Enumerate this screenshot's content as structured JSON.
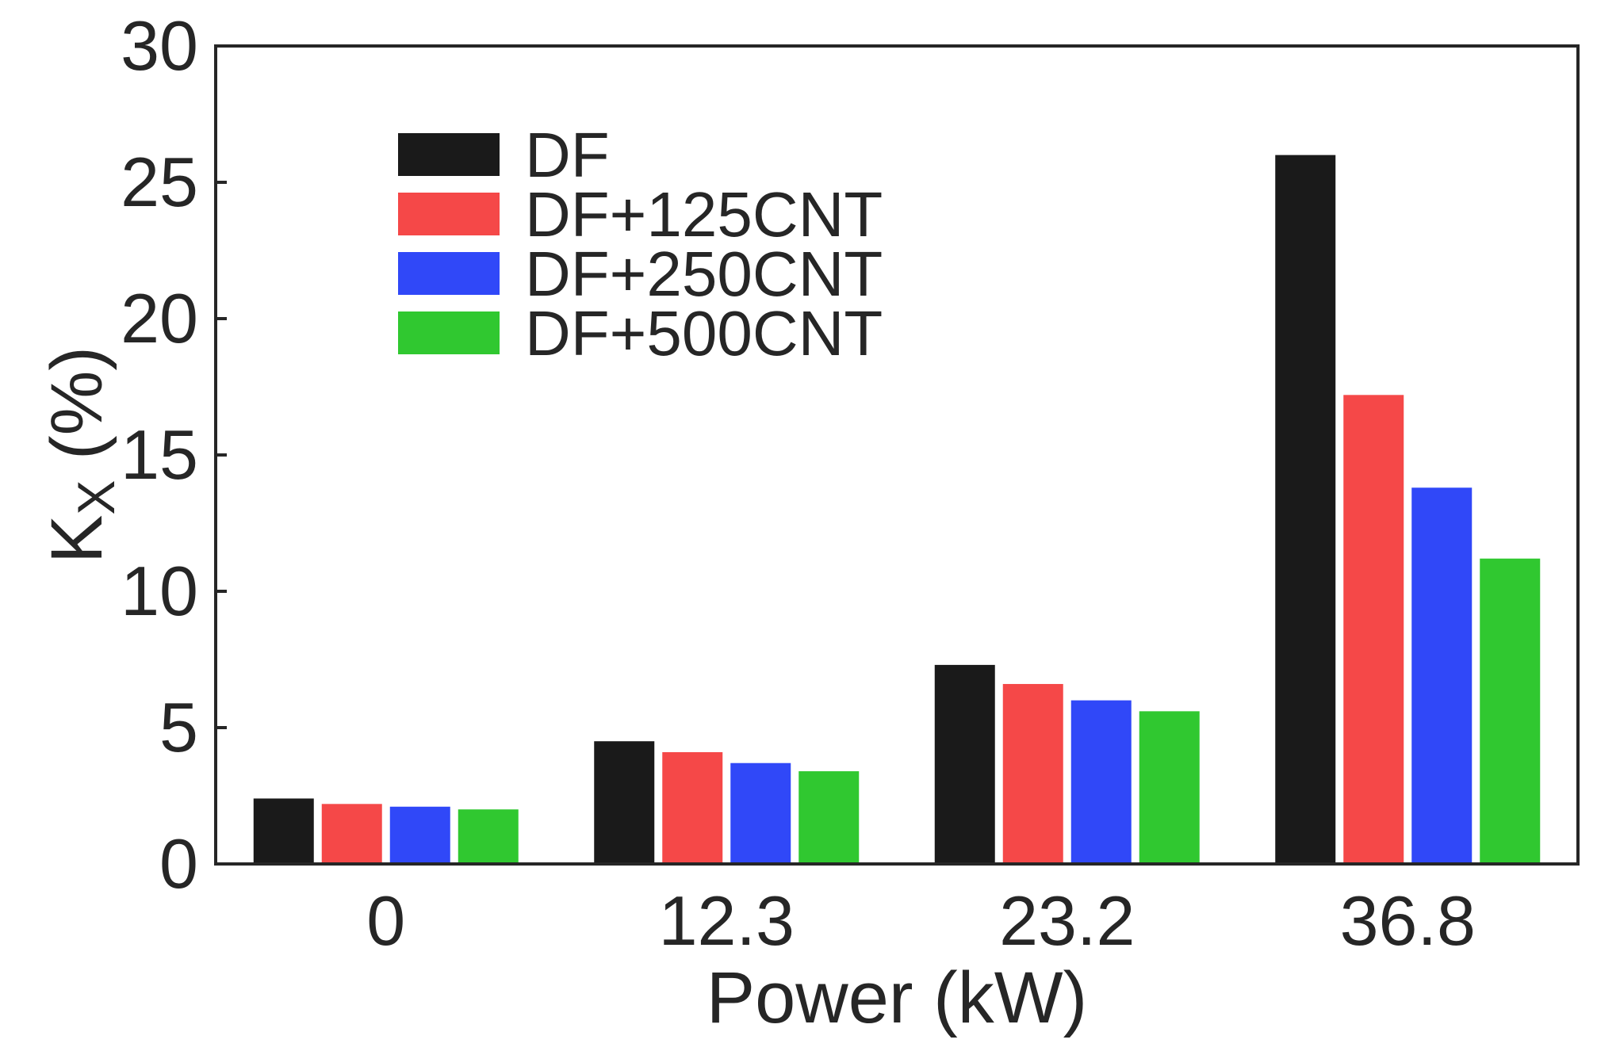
{
  "chart_data": {
    "type": "bar",
    "title": "",
    "xlabel": "Power (kW)",
    "ylabel_main": "K",
    "ylabel_sub": "X",
    "ylabel_rest": " (%)",
    "categories": [
      "0",
      "12.3",
      "23.2",
      "36.8"
    ],
    "ylim": [
      0,
      30
    ],
    "yticks": [
      0,
      5,
      10,
      15,
      20,
      25,
      30
    ],
    "ytick_labels": [
      "0",
      "5",
      "10",
      "15",
      "20",
      "25",
      "30"
    ],
    "legend_position": "top-left",
    "grid": false,
    "series": [
      {
        "name": "DF",
        "color": "#1a1a1a",
        "values": [
          2.4,
          4.5,
          7.3,
          26.0
        ]
      },
      {
        "name": "DF+125CNT",
        "color": "#f54848",
        "values": [
          2.2,
          4.1,
          6.6,
          17.2
        ]
      },
      {
        "name": "DF+250CNT",
        "color": "#3048f8",
        "values": [
          2.1,
          3.7,
          6.0,
          13.8
        ]
      },
      {
        "name": "DF+500CNT",
        "color": "#30c830",
        "values": [
          2.0,
          3.4,
          5.6,
          11.2
        ]
      }
    ]
  }
}
